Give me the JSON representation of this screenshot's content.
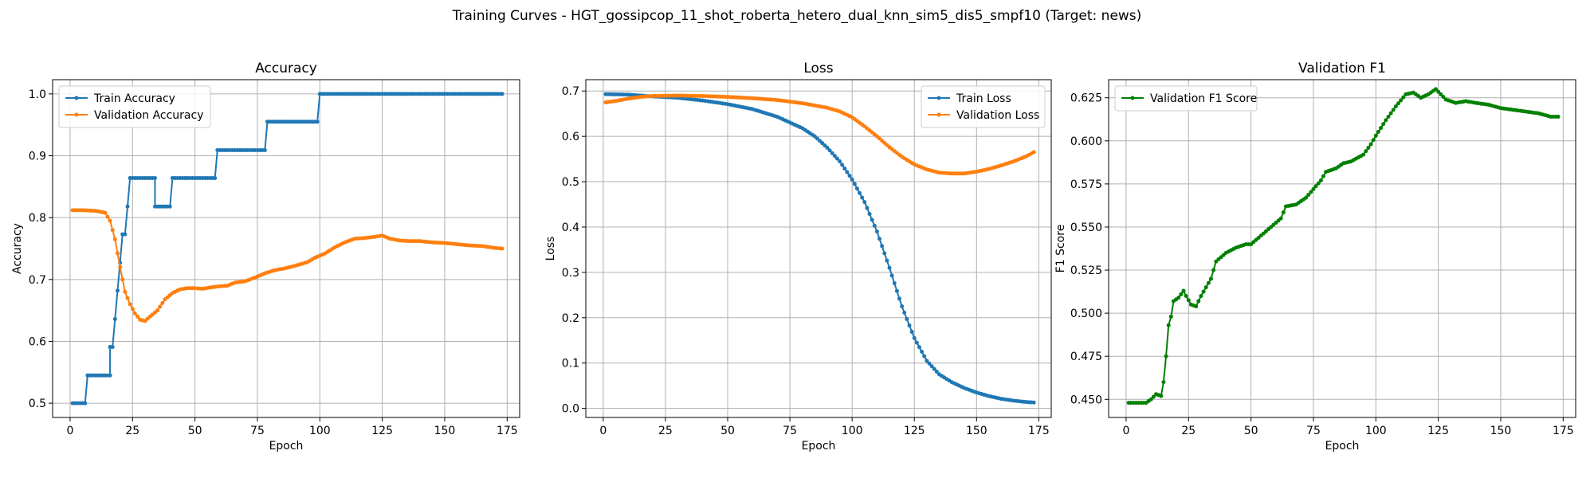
{
  "figure": {
    "title": "Training Curves - HGT_gossipcop_11_shot_roberta_hetero_dual_knn_sim5_dis5_smpf10 (Target: news)"
  },
  "colors": {
    "blue": "#1f77b4",
    "orange": "#ff7f0e",
    "green": "#008000",
    "grid": "#b0b0b0"
  },
  "chart_data": [
    {
      "type": "line",
      "title": "Accuracy",
      "xlabel": "Epoch",
      "ylabel": "Accuracy",
      "xlim": [
        -7,
        180
      ],
      "ylim": [
        0.477,
        1.023
      ],
      "xticks": [
        0,
        25,
        50,
        75,
        100,
        125,
        150,
        175
      ],
      "yticks": [
        0.5,
        0.6,
        0.7,
        0.8,
        0.9,
        1.0
      ],
      "ytick_labels": [
        "0.5",
        "0.6",
        "0.7",
        "0.8",
        "0.9",
        "1.0"
      ],
      "grid": true,
      "legend_position": "upper-left",
      "series": [
        {
          "name": "Train Accuracy",
          "color": "#1f77b4",
          "points": [
            [
              1,
              0.5
            ],
            [
              6,
              0.5
            ],
            [
              7,
              0.545
            ],
            [
              16,
              0.545
            ],
            [
              16,
              0.591
            ],
            [
              17,
              0.591
            ],
            [
              18,
              0.636
            ],
            [
              19,
              0.682
            ],
            [
              20,
              0.727
            ],
            [
              21,
              0.773
            ],
            [
              22,
              0.773
            ],
            [
              23,
              0.818
            ],
            [
              24,
              0.864
            ],
            [
              34,
              0.864
            ],
            [
              34,
              0.818
            ],
            [
              40,
              0.818
            ],
            [
              41,
              0.864
            ],
            [
              58,
              0.864
            ],
            [
              59,
              0.909
            ],
            [
              78,
              0.909
            ],
            [
              79,
              0.955
            ],
            [
              99,
              0.955
            ],
            [
              100,
              1.0
            ],
            [
              173,
              1.0
            ]
          ]
        },
        {
          "name": "Validation Accuracy",
          "color": "#ff7f0e",
          "points": [
            [
              1,
              0.812
            ],
            [
              5,
              0.812
            ],
            [
              10,
              0.811
            ],
            [
              14,
              0.808
            ],
            [
              16,
              0.795
            ],
            [
              18,
              0.765
            ],
            [
              20,
              0.72
            ],
            [
              22,
              0.68
            ],
            [
              24,
              0.66
            ],
            [
              26,
              0.645
            ],
            [
              28,
              0.635
            ],
            [
              30,
              0.633
            ],
            [
              32,
              0.64
            ],
            [
              35,
              0.65
            ],
            [
              38,
              0.668
            ],
            [
              41,
              0.678
            ],
            [
              44,
              0.684
            ],
            [
              47,
              0.686
            ],
            [
              50,
              0.686
            ],
            [
              53,
              0.685
            ],
            [
              56,
              0.687
            ],
            [
              60,
              0.689
            ],
            [
              63,
              0.69
            ],
            [
              66,
              0.695
            ],
            [
              70,
              0.697
            ],
            [
              74,
              0.703
            ],
            [
              78,
              0.71
            ],
            [
              82,
              0.715
            ],
            [
              86,
              0.718
            ],
            [
              90,
              0.722
            ],
            [
              95,
              0.728
            ],
            [
              98,
              0.735
            ],
            [
              102,
              0.742
            ],
            [
              106,
              0.752
            ],
            [
              110,
              0.76
            ],
            [
              114,
              0.766
            ],
            [
              118,
              0.767
            ],
            [
              122,
              0.769
            ],
            [
              125,
              0.771
            ],
            [
              128,
              0.766
            ],
            [
              132,
              0.763
            ],
            [
              136,
              0.762
            ],
            [
              140,
              0.762
            ],
            [
              145,
              0.76
            ],
            [
              150,
              0.759
            ],
            [
              155,
              0.757
            ],
            [
              160,
              0.755
            ],
            [
              165,
              0.754
            ],
            [
              170,
              0.751
            ],
            [
              173,
              0.75
            ]
          ]
        }
      ]
    },
    {
      "type": "line",
      "title": "Loss",
      "xlabel": "Epoch",
      "ylabel": "Loss",
      "xlim": [
        -7,
        180
      ],
      "ylim": [
        -0.02,
        0.725
      ],
      "xticks": [
        0,
        25,
        50,
        75,
        100,
        125,
        150,
        175
      ],
      "yticks": [
        0.0,
        0.1,
        0.2,
        0.3,
        0.4,
        0.5,
        0.6,
        0.7
      ],
      "ytick_labels": [
        "0.0",
        "0.1",
        "0.2",
        "0.3",
        "0.4",
        "0.5",
        "0.6",
        "0.7"
      ],
      "grid": true,
      "legend_position": "upper-right",
      "series": [
        {
          "name": "Train Loss",
          "color": "#1f77b4",
          "points": [
            [
              1,
              0.693
            ],
            [
              10,
              0.692
            ],
            [
              20,
              0.688
            ],
            [
              30,
              0.685
            ],
            [
              40,
              0.679
            ],
            [
              50,
              0.671
            ],
            [
              60,
              0.66
            ],
            [
              70,
              0.643
            ],
            [
              80,
              0.618
            ],
            [
              85,
              0.6
            ],
            [
              90,
              0.575
            ],
            [
              95,
              0.545
            ],
            [
              100,
              0.505
            ],
            [
              105,
              0.455
            ],
            [
              110,
              0.39
            ],
            [
              115,
              0.31
            ],
            [
              120,
              0.225
            ],
            [
              125,
              0.155
            ],
            [
              130,
              0.105
            ],
            [
              135,
              0.075
            ],
            [
              140,
              0.058
            ],
            [
              145,
              0.045
            ],
            [
              150,
              0.035
            ],
            [
              155,
              0.027
            ],
            [
              160,
              0.021
            ],
            [
              165,
              0.017
            ],
            [
              170,
              0.014
            ],
            [
              173,
              0.013
            ]
          ]
        },
        {
          "name": "Validation Loss",
          "color": "#ff7f0e",
          "points": [
            [
              1,
              0.675
            ],
            [
              5,
              0.678
            ],
            [
              10,
              0.683
            ],
            [
              15,
              0.687
            ],
            [
              20,
              0.689
            ],
            [
              30,
              0.69
            ],
            [
              40,
              0.689
            ],
            [
              50,
              0.687
            ],
            [
              60,
              0.684
            ],
            [
              70,
              0.68
            ],
            [
              80,
              0.673
            ],
            [
              90,
              0.663
            ],
            [
              95,
              0.655
            ],
            [
              100,
              0.642
            ],
            [
              105,
              0.622
            ],
            [
              110,
              0.6
            ],
            [
              115,
              0.576
            ],
            [
              120,
              0.555
            ],
            [
              125,
              0.538
            ],
            [
              130,
              0.527
            ],
            [
              135,
              0.52
            ],
            [
              140,
              0.518
            ],
            [
              145,
              0.518
            ],
            [
              150,
              0.522
            ],
            [
              155,
              0.528
            ],
            [
              160,
              0.536
            ],
            [
              165,
              0.545
            ],
            [
              170,
              0.556
            ],
            [
              173,
              0.565
            ]
          ]
        }
      ]
    },
    {
      "type": "line",
      "title": "Validation F1",
      "xlabel": "Epoch",
      "ylabel": "F1 Score",
      "xlim": [
        -7,
        180
      ],
      "ylim": [
        0.4395,
        0.6355
      ],
      "xticks": [
        0,
        25,
        50,
        75,
        100,
        125,
        150,
        175
      ],
      "yticks": [
        0.45,
        0.475,
        0.5,
        0.525,
        0.55,
        0.575,
        0.6,
        0.625
      ],
      "ytick_labels": [
        "0.450",
        "0.475",
        "0.500",
        "0.525",
        "0.550",
        "0.575",
        "0.600",
        "0.625"
      ],
      "grid": true,
      "legend_position": "upper-left",
      "series": [
        {
          "name": "Validation F1 Score",
          "color": "#008000",
          "points": [
            [
              1,
              0.448
            ],
            [
              8,
              0.448
            ],
            [
              10,
              0.45
            ],
            [
              12,
              0.453
            ],
            [
              14,
              0.452
            ],
            [
              15,
              0.46
            ],
            [
              16,
              0.475
            ],
            [
              17,
              0.493
            ],
            [
              18,
              0.498
            ],
            [
              19,
              0.507
            ],
            [
              21,
              0.509
            ],
            [
              23,
              0.513
            ],
            [
              24,
              0.51
            ],
            [
              26,
              0.505
            ],
            [
              28,
              0.504
            ],
            [
              30,
              0.51
            ],
            [
              32,
              0.515
            ],
            [
              34,
              0.52
            ],
            [
              36,
              0.53
            ],
            [
              40,
              0.535
            ],
            [
              44,
              0.538
            ],
            [
              48,
              0.54
            ],
            [
              50,
              0.54
            ],
            [
              54,
              0.545
            ],
            [
              58,
              0.55
            ],
            [
              62,
              0.555
            ],
            [
              64,
              0.562
            ],
            [
              68,
              0.563
            ],
            [
              72,
              0.567
            ],
            [
              75,
              0.572
            ],
            [
              78,
              0.577
            ],
            [
              80,
              0.582
            ],
            [
              84,
              0.584
            ],
            [
              87,
              0.587
            ],
            [
              90,
              0.588
            ],
            [
              95,
              0.592
            ],
            [
              98,
              0.598
            ],
            [
              100,
              0.603
            ],
            [
              104,
              0.612
            ],
            [
              108,
              0.62
            ],
            [
              112,
              0.627
            ],
            [
              115,
              0.628
            ],
            [
              118,
              0.625
            ],
            [
              121,
              0.627
            ],
            [
              124,
              0.63
            ],
            [
              126,
              0.627
            ],
            [
              128,
              0.624
            ],
            [
              132,
              0.622
            ],
            [
              136,
              0.623
            ],
            [
              140,
              0.622
            ],
            [
              145,
              0.621
            ],
            [
              150,
              0.619
            ],
            [
              155,
              0.618
            ],
            [
              160,
              0.617
            ],
            [
              165,
              0.616
            ],
            [
              170,
              0.614
            ],
            [
              173,
              0.614
            ]
          ]
        }
      ]
    }
  ]
}
